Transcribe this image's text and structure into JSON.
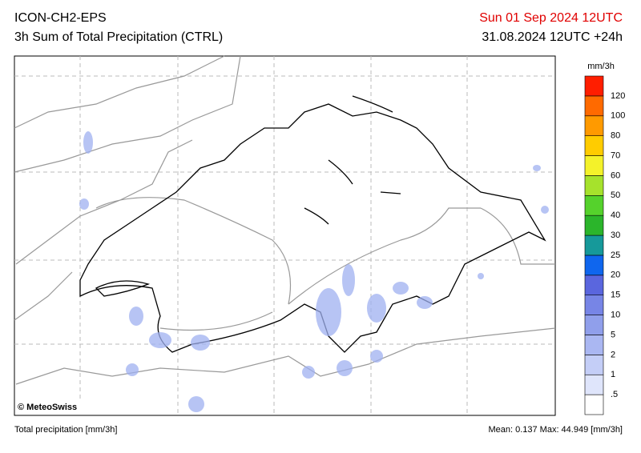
{
  "header": {
    "model": "ICON-CH2-EPS",
    "product": "3h Sum of Total Precipitation (CTRL)",
    "valid_time": "Sun 01 Sep 2024 12UTC",
    "run": "31.08.2024 12UTC +24h"
  },
  "map": {
    "credit": "© MeteoSwiss"
  },
  "legend": {
    "unit": "mm/3h",
    "labels": [
      ".5",
      "1",
      "2",
      "5",
      "10",
      "15",
      "20",
      "25",
      "30",
      "40",
      "50",
      "60",
      "70",
      "80",
      "100",
      "120"
    ],
    "colors": [
      "#ffffff",
      "#dfe5fb",
      "#c4cef7",
      "#aab7f2",
      "#909feb",
      "#7785e6",
      "#5a66de",
      "#0f66ee",
      "#16999a",
      "#2bb52b",
      "#55d22c",
      "#a6e22c",
      "#f4f22a",
      "#ffcc00",
      "#ff9a00",
      "#ff6a00",
      "#ff1e00"
    ]
  },
  "footer": {
    "variable": "Total precipitation [mm/3h]",
    "stats": "Mean:  0.137 Max:  44.949 [mm/3h]"
  }
}
